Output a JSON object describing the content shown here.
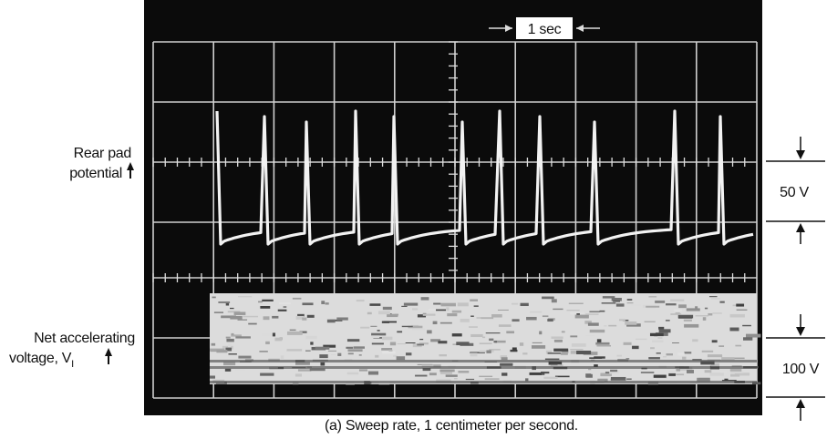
{
  "scale_marker": "1 sec",
  "left_labels": [
    {
      "lines": [
        "Rear pad",
        "potential"
      ]
    },
    {
      "lines": [
        "Net accelerating",
        "voltage, V"
      ],
      "subscript": "I"
    }
  ],
  "right_labels": [
    "50 V",
    "100 V"
  ],
  "caption": "(a) Sweep rate, 1 centimeter per second."
}
